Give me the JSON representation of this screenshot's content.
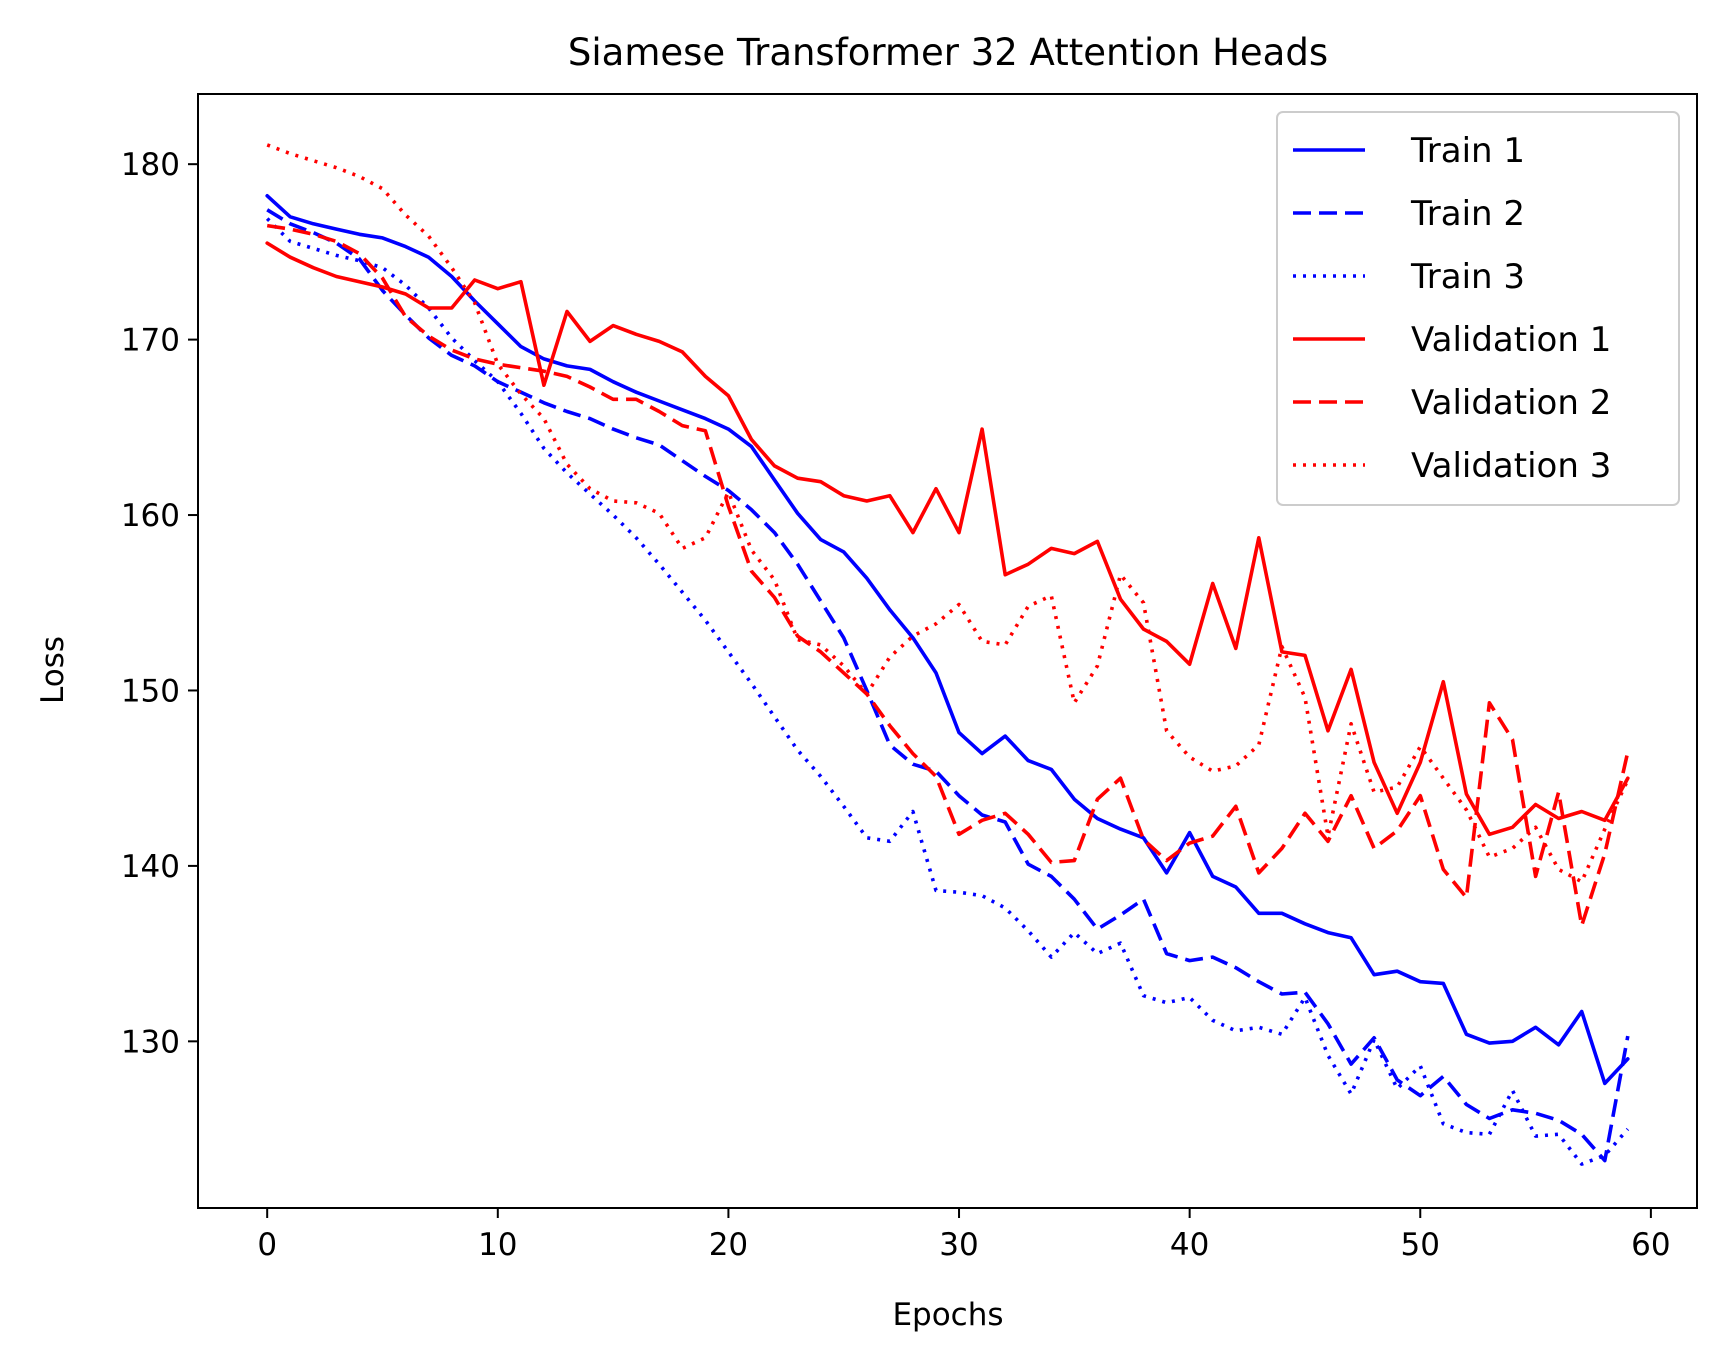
{
  "chart_data": {
    "type": "line",
    "title": "Siamese Transformer 32 Attention Heads",
    "xlabel": "Epochs",
    "ylabel": "Loss",
    "xlim": [
      -3,
      62
    ],
    "ylim": [
      120.5,
      184
    ],
    "xticks": [
      0,
      10,
      20,
      30,
      40,
      50,
      60
    ],
    "yticks": [
      130,
      140,
      150,
      160,
      170,
      180
    ],
    "grid": false,
    "legend_position": "top-right",
    "x": [
      0,
      1,
      2,
      3,
      4,
      5,
      6,
      7,
      8,
      9,
      10,
      11,
      12,
      13,
      14,
      15,
      16,
      17,
      18,
      19,
      20,
      21,
      22,
      23,
      24,
      25,
      26,
      27,
      28,
      29,
      30,
      31,
      32,
      33,
      34,
      35,
      36,
      37,
      38,
      39,
      40,
      41,
      42,
      43,
      44,
      45,
      46,
      47,
      48,
      49,
      50,
      51,
      52,
      53,
      54,
      55,
      56,
      57,
      58,
      59
    ],
    "series": [
      {
        "name": "Train 1",
        "color": "#0000ff",
        "dash": "solid",
        "values": [
          178.2,
          177.0,
          176.6,
          176.3,
          176.0,
          175.8,
          175.3,
          174.7,
          173.6,
          172.2,
          170.9,
          169.6,
          168.9,
          168.5,
          168.3,
          167.6,
          167.0,
          166.5,
          166.0,
          165.5,
          164.9,
          163.9,
          162.0,
          160.1,
          158.6,
          157.9,
          156.4,
          154.6,
          153.0,
          151.0,
          147.6,
          146.4,
          147.4,
          146.0,
          145.5,
          143.8,
          142.7,
          142.1,
          141.6,
          139.6,
          141.9,
          139.4,
          138.8,
          137.3,
          137.3,
          136.7,
          136.2,
          135.9,
          133.8,
          134.0,
          133.4,
          133.3,
          130.4,
          129.9,
          130.0,
          130.8,
          129.8,
          131.7,
          127.6,
          129.0
        ]
      },
      {
        "name": "Train 2",
        "color": "#0000ff",
        "dash": "dashed",
        "values": [
          177.4,
          176.6,
          176.1,
          175.5,
          174.6,
          172.8,
          171.4,
          170.1,
          169.1,
          168.5,
          167.6,
          167.0,
          166.4,
          165.9,
          165.5,
          164.9,
          164.4,
          164.0,
          163.1,
          162.2,
          161.4,
          160.3,
          159.0,
          157.2,
          155.1,
          153.0,
          150.0,
          146.9,
          145.8,
          145.4,
          144.0,
          142.9,
          142.5,
          140.1,
          139.4,
          138.1,
          136.4,
          137.2,
          138.1,
          135.0,
          134.6,
          134.8,
          134.2,
          133.4,
          132.7,
          132.8,
          131.0,
          128.7,
          130.2,
          127.8,
          126.9,
          128.0,
          126.4,
          125.6,
          126.1,
          125.9,
          125.5,
          124.7,
          123.2,
          130.3
        ]
      },
      {
        "name": "Train 3",
        "color": "#0000ff",
        "dash": "dotted",
        "values": [
          176.9,
          175.6,
          175.2,
          174.8,
          174.5,
          174.1,
          173.1,
          171.8,
          170.1,
          168.8,
          167.6,
          165.8,
          163.8,
          162.4,
          161.2,
          160.0,
          158.7,
          157.2,
          155.6,
          154.0,
          152.2,
          150.4,
          148.5,
          146.6,
          145.1,
          143.4,
          141.6,
          141.4,
          143.1,
          138.6,
          138.5,
          138.3,
          137.6,
          136.3,
          134.8,
          136.2,
          135.0,
          135.6,
          132.6,
          132.2,
          132.5,
          131.2,
          130.6,
          130.8,
          130.4,
          132.5,
          129.2,
          127.0,
          130.1,
          127.3,
          128.6,
          125.3,
          124.8,
          124.7,
          127.2,
          124.6,
          124.7,
          123.0,
          123.5,
          125.0
        ]
      },
      {
        "name": "Validation 1",
        "color": "#ff0000",
        "dash": "solid",
        "values": [
          175.5,
          174.7,
          174.1,
          173.6,
          173.3,
          173.0,
          172.6,
          171.8,
          171.8,
          173.4,
          172.9,
          173.3,
          167.4,
          171.6,
          169.9,
          170.8,
          170.3,
          169.9,
          169.3,
          167.9,
          166.8,
          164.3,
          162.8,
          162.1,
          161.9,
          161.1,
          160.8,
          161.1,
          159.0,
          161.5,
          159.0,
          164.9,
          156.6,
          157.2,
          158.1,
          157.8,
          158.5,
          155.2,
          153.5,
          152.8,
          151.5,
          156.1,
          152.4,
          158.7,
          152.2,
          152.0,
          147.7,
          151.2,
          145.9,
          143.0,
          145.9,
          150.5,
          144.1,
          141.8,
          142.2,
          143.5,
          142.7,
          143.1,
          142.6,
          145.0
        ]
      },
      {
        "name": "Validation 2",
        "color": "#ff0000",
        "dash": "dashed",
        "values": [
          176.5,
          176.3,
          176.0,
          175.6,
          174.9,
          173.5,
          171.3,
          170.2,
          169.4,
          168.9,
          168.6,
          168.4,
          168.2,
          167.9,
          167.3,
          166.6,
          166.6,
          165.9,
          165.1,
          164.8,
          160.5,
          156.8,
          155.3,
          153.1,
          152.2,
          151.0,
          149.8,
          148.0,
          146.4,
          145.1,
          141.8,
          142.6,
          143.0,
          141.8,
          140.2,
          140.3,
          143.8,
          145.0,
          141.5,
          140.3,
          141.3,
          141.7,
          143.4,
          139.6,
          141.0,
          143.0,
          141.4,
          144.0,
          141.0,
          142.0,
          144.0,
          139.8,
          138.2,
          149.3,
          147.2,
          139.4,
          144.2,
          136.6,
          140.7,
          146.5
        ]
      },
      {
        "name": "Validation 3",
        "color": "#ff0000",
        "dash": "dotted",
        "values": [
          181.1,
          180.6,
          180.2,
          179.8,
          179.3,
          178.6,
          177.1,
          175.9,
          174.1,
          172.1,
          168.6,
          166.9,
          165.5,
          162.9,
          161.5,
          160.8,
          160.7,
          160.1,
          158.1,
          158.7,
          161.3,
          158.0,
          156.3,
          152.9,
          152.6,
          151.4,
          149.8,
          151.9,
          153.1,
          153.8,
          154.9,
          152.8,
          152.6,
          154.8,
          155.4,
          149.3,
          151.4,
          156.6,
          155.0,
          147.7,
          146.2,
          145.4,
          145.7,
          146.9,
          152.5,
          149.6,
          141.7,
          148.1,
          144.2,
          144.5,
          146.8,
          145.0,
          143.2,
          140.5,
          141.0,
          142.2,
          139.8,
          139.1,
          142.1,
          144.9
        ]
      }
    ]
  }
}
